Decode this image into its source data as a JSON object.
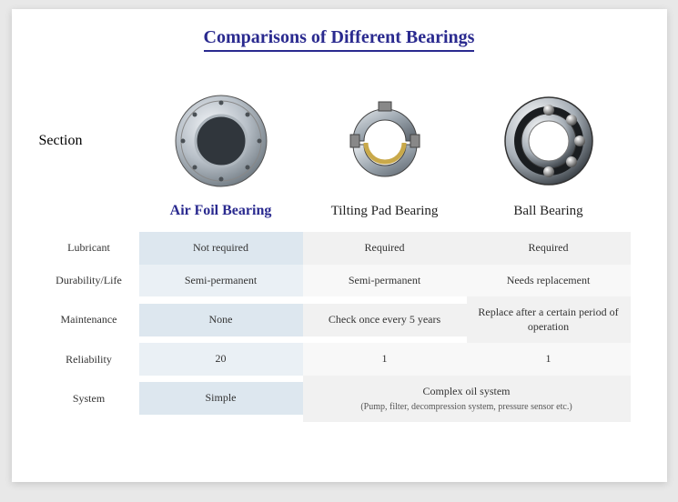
{
  "title": "Comparisons of Different Bearings",
  "section_label": "Section",
  "columns": [
    {
      "name": "Air Foil Bearing",
      "primary": true
    },
    {
      "name": "Tilting Pad Bearing",
      "primary": false
    },
    {
      "name": "Ball Bearing",
      "primary": false
    }
  ],
  "rows": [
    {
      "label": "Lubricant",
      "cells": [
        "Not required",
        "Required",
        "Required"
      ],
      "shade": "a"
    },
    {
      "label": "Durability/Life",
      "cells": [
        "Semi-permanent",
        "Semi-permanent",
        "Needs replacement"
      ],
      "shade": "b"
    },
    {
      "label": "Maintenance",
      "cells": [
        "None",
        "Check once every 5 years",
        "Replace after a certain period of operation"
      ],
      "shade": "a"
    },
    {
      "label": "Reliability",
      "cells": [
        "20",
        "1",
        "1"
      ],
      "shade": "b"
    }
  ],
  "system_row": {
    "label": "System",
    "col1": "Simple",
    "merged": "Complex oil system",
    "merged_sub": "(Pump, filter, decompression system, pressure sensor etc.)",
    "shade": "a"
  },
  "colors": {
    "title": "#2a2a8f",
    "primary_text": "#2a2a8f",
    "shade_a_col1": "#dde7ef",
    "shade_a_rest": "#f1f1f1",
    "shade_b_col1": "#eaf0f5",
    "shade_b_rest": "#f8f8f8",
    "page_bg": "#ffffff",
    "body_bg": "#e8e8e8"
  },
  "images": {
    "air_foil": "bearing-airfoil-icon",
    "tilting_pad": "bearing-tiltingpad-icon",
    "ball": "bearing-ball-icon"
  }
}
